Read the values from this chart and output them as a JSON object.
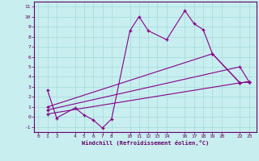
{
  "xlabel": "Windchill (Refroidissement éolien,°C)",
  "background_color": "#c8eef0",
  "grid_color": "#aadddd",
  "line_color": "#880088",
  "xlim": [
    -0.5,
    23.8
  ],
  "ylim": [
    -1.5,
    11.5
  ],
  "xticks": [
    0,
    1,
    2,
    4,
    5,
    6,
    7,
    8,
    10,
    11,
    12,
    13,
    14,
    16,
    17,
    18,
    19,
    20,
    22,
    23
  ],
  "yticks": [
    -1,
    0,
    1,
    2,
    3,
    4,
    5,
    6,
    7,
    8,
    9,
    10,
    11
  ],
  "series1_x": [
    1,
    2,
    4,
    5,
    6,
    7,
    8,
    10,
    11,
    12,
    14,
    16,
    17,
    18,
    19,
    22,
    23
  ],
  "series1_y": [
    2.7,
    -0.1,
    0.9,
    0.2,
    -0.3,
    -1.1,
    -0.2,
    8.6,
    10.0,
    8.6,
    7.7,
    10.6,
    9.3,
    8.7,
    6.3,
    3.4,
    3.5
  ],
  "series2_x": [
    1,
    19,
    22,
    23
  ],
  "series2_y": [
    1.0,
    6.3,
    3.4,
    3.5
  ],
  "series3_x": [
    1,
    22,
    23
  ],
  "series3_y": [
    0.7,
    5.0,
    3.5
  ],
  "series4_x": [
    1,
    22,
    23
  ],
  "series4_y": [
    0.3,
    3.4,
    3.5
  ]
}
